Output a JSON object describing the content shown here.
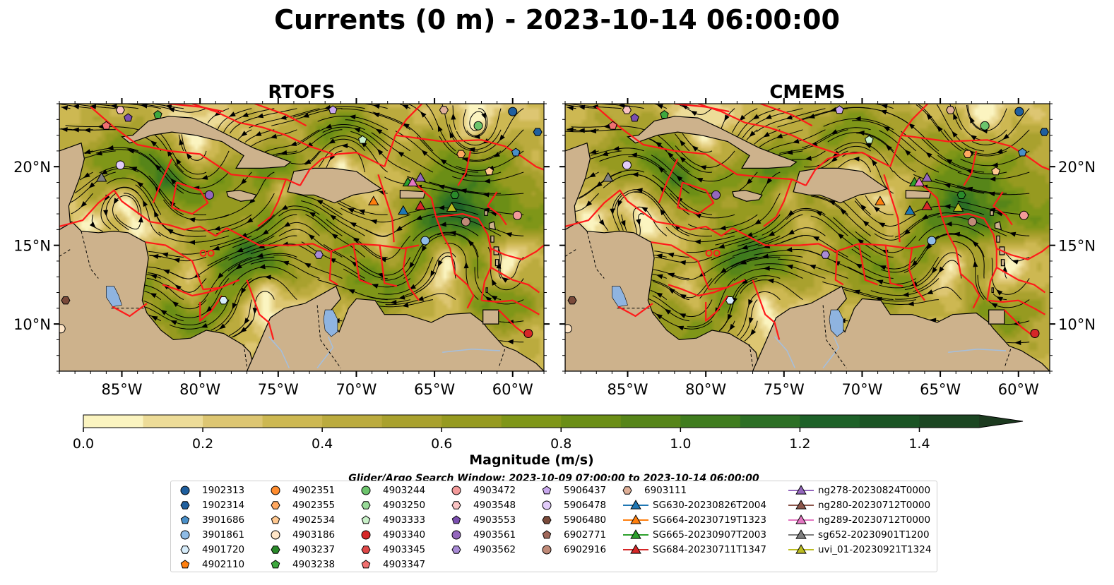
{
  "title": "Currents (0 m) - 2023-10-14 06:00:00",
  "panels": [
    {
      "id": "rtofs",
      "title": "RTOFS"
    },
    {
      "id": "cmems",
      "title": "CMEMS"
    }
  ],
  "map_extent": {
    "lon_min": -89,
    "lon_max": -58,
    "lat_min": 7,
    "lat_max": 24
  },
  "lon_ticks": [
    {
      "v": -85,
      "label": "85°W"
    },
    {
      "v": -80,
      "label": "80°W"
    },
    {
      "v": -75,
      "label": "75°W"
    },
    {
      "v": -70,
      "label": "70°W"
    },
    {
      "v": -65,
      "label": "65°W"
    },
    {
      "v": -60,
      "label": "60°W"
    }
  ],
  "lat_ticks": [
    {
      "v": 20,
      "label": "20°N"
    },
    {
      "v": 15,
      "label": "15°N"
    },
    {
      "v": 10,
      "label": "10°N"
    }
  ],
  "colorbar": {
    "label": "Magnitude (m/s)",
    "min": 0.0,
    "max": 1.5,
    "extend": "max",
    "ticks": [
      {
        "v": 0.0,
        "label": "0.0"
      },
      {
        "v": 0.2,
        "label": "0.2"
      },
      {
        "v": 0.4,
        "label": "0.4"
      },
      {
        "v": 0.6,
        "label": "0.6"
      },
      {
        "v": 0.8,
        "label": "0.8"
      },
      {
        "v": 1.0,
        "label": "1.0"
      },
      {
        "v": 1.2,
        "label": "1.2"
      },
      {
        "v": 1.4,
        "label": "1.4"
      }
    ],
    "colors": [
      "#fbf4c0",
      "#eddc98",
      "#ddc672",
      "#cdb852",
      "#bbab3e",
      "#a9a12e",
      "#969a20",
      "#7f9618",
      "#6b8e16",
      "#568519",
      "#3f7c1e",
      "#2c6f25",
      "#1d6128",
      "#1a5424",
      "#1b4622",
      "#1c3a1f"
    ]
  },
  "search_window": "Glider/Argo Search Window: 2023-10-09 07:00:00 to 2023-10-14 06:00:00",
  "legend_items": [
    {
      "label": "1902313",
      "marker": "circle",
      "color": "#1f5f9e"
    },
    {
      "label": "1902314",
      "marker": "hexagon",
      "color": "#1f5f9e"
    },
    {
      "label": "3901686",
      "marker": "pentagon",
      "color": "#4a90c9"
    },
    {
      "label": "3901861",
      "marker": "circle",
      "color": "#8fbce6"
    },
    {
      "label": "4901720",
      "marker": "hexagon",
      "color": "#d6ecfa"
    },
    {
      "label": "4902110",
      "marker": "pentagon",
      "color": "#ff7f0e"
    },
    {
      "label": "4902351",
      "marker": "circle",
      "color": "#ff8c2e"
    },
    {
      "label": "4902355",
      "marker": "hexagon",
      "color": "#ffa860"
    },
    {
      "label": "4902534",
      "marker": "pentagon",
      "color": "#ffc890"
    },
    {
      "label": "4903186",
      "marker": "circle",
      "color": "#ffe6c8"
    },
    {
      "label": "4903237",
      "marker": "hexagon",
      "color": "#2a8a2a"
    },
    {
      "label": "4903238",
      "marker": "pentagon",
      "color": "#3ea83e"
    },
    {
      "label": "4903244",
      "marker": "circle",
      "color": "#6cc46c"
    },
    {
      "label": "4903250",
      "marker": "hexagon",
      "color": "#98da98"
    },
    {
      "label": "4903333",
      "marker": "pentagon",
      "color": "#c8f0c8"
    },
    {
      "label": "4903340",
      "marker": "circle",
      "color": "#d62728"
    },
    {
      "label": "4903345",
      "marker": "hexagon",
      "color": "#e04848"
    },
    {
      "label": "4903347",
      "marker": "pentagon",
      "color": "#f07070"
    },
    {
      "label": "4903472",
      "marker": "circle",
      "color": "#f39a9a"
    },
    {
      "label": "4903548",
      "marker": "hexagon",
      "color": "#fbc4c4"
    },
    {
      "label": "4903553",
      "marker": "pentagon",
      "color": "#7b4fb0"
    },
    {
      "label": "4903561",
      "marker": "circle",
      "color": "#9467bd"
    },
    {
      "label": "4903562",
      "marker": "hexagon",
      "color": "#a98bd6"
    },
    {
      "label": "5906437",
      "marker": "pentagon",
      "color": "#c9a8ee"
    },
    {
      "label": "5906478",
      "marker": "circle",
      "color": "#e2ccfa"
    },
    {
      "label": "5906480",
      "marker": "hexagon",
      "color": "#7a4a3a"
    },
    {
      "label": "6902771",
      "marker": "pentagon",
      "color": "#a0685a"
    },
    {
      "label": "6902916",
      "marker": "circle",
      "color": "#c08a78"
    },
    {
      "label": "6903111",
      "marker": "hexagon",
      "color": "#e0b098"
    },
    {
      "label": "SG630-20230826T2004",
      "marker": "triangle",
      "color": "#1f77b4",
      "line": true
    },
    {
      "label": "SG664-20230719T1323",
      "marker": "triangle",
      "color": "#ff7f0e",
      "line": true
    },
    {
      "label": "SG665-20230907T2003",
      "marker": "triangle",
      "color": "#2ca02c",
      "line": true
    },
    {
      "label": "SG684-20230711T1347",
      "marker": "triangle",
      "color": "#d62728",
      "line": true
    },
    {
      "label": "ng278-20230824T0000",
      "marker": "triangle",
      "color": "#9467bd",
      "line": true
    },
    {
      "label": "ng280-20230712T0000",
      "marker": "triangle",
      "color": "#8c564b",
      "line": true
    },
    {
      "label": "ng289-20230712T0000",
      "marker": "triangle",
      "color": "#e377c2",
      "line": true
    },
    {
      "label": "sg652-20230901T1200",
      "marker": "triangle",
      "color": "#7f7f7f",
      "line": true
    },
    {
      "label": "uvi_01-20230921T1324",
      "marker": "triangle",
      "color": "#bcbd22",
      "line": true
    }
  ],
  "platform_positions": [
    {
      "label": "1902313",
      "lon": -60.0,
      "lat": 23.5
    },
    {
      "label": "1902314",
      "lon": -58.4,
      "lat": 22.2
    },
    {
      "label": "3901686",
      "lon": -59.8,
      "lat": 20.9
    },
    {
      "label": "3901861",
      "lon": -65.6,
      "lat": 15.3
    },
    {
      "label": "4901720",
      "lon": -78.5,
      "lat": 11.5
    },
    {
      "label": "4902355",
      "lon": -63.3,
      "lat": 20.8
    },
    {
      "label": "4902534",
      "lon": -61.5,
      "lat": 19.7
    },
    {
      "label": "4903186",
      "lon": -88.9,
      "lat": 9.7
    },
    {
      "label": "4903237",
      "lon": -63.7,
      "lat": 18.2
    },
    {
      "label": "4903238",
      "lon": -82.7,
      "lat": 23.3
    },
    {
      "label": "4903244",
      "lon": -62.2,
      "lat": 22.6
    },
    {
      "label": "4903333",
      "lon": -69.6,
      "lat": 21.7
    },
    {
      "label": "4903340",
      "lon": -59.0,
      "lat": 9.4
    },
    {
      "label": "4903347",
      "lon": -86.0,
      "lat": 22.6
    },
    {
      "label": "4903472",
      "lon": -59.7,
      "lat": 16.9
    },
    {
      "label": "4903548",
      "lon": -85.1,
      "lat": 23.6
    },
    {
      "label": "4903553",
      "lon": -84.6,
      "lat": 23.1
    },
    {
      "label": "4903561",
      "lon": -79.4,
      "lat": 18.2
    },
    {
      "label": "4903562",
      "lon": -72.4,
      "lat": 14.4
    },
    {
      "label": "5906437",
      "lon": -71.5,
      "lat": 23.6
    },
    {
      "label": "5906478",
      "lon": -85.1,
      "lat": 20.1
    },
    {
      "label": "5906480",
      "lon": -88.6,
      "lat": 11.5
    },
    {
      "label": "6902916",
      "lon": -63.0,
      "lat": 16.5
    },
    {
      "label": "6903111",
      "lon": -64.4,
      "lat": 23.6
    },
    {
      "label": "SG630-20230826T2004",
      "lon": -67.0,
      "lat": 17.2
    },
    {
      "label": "SG664-20230719T1323",
      "lon": -68.9,
      "lat": 17.8
    },
    {
      "label": "SG665-20230907T2003",
      "lon": -66.7,
      "lat": 19.0
    },
    {
      "label": "SG684-20230711T1347",
      "lon": -65.9,
      "lat": 17.5
    },
    {
      "label": "ng278-20230824T0000",
      "lon": -65.9,
      "lat": 19.3
    },
    {
      "label": "ng289-20230712T0000",
      "lon": -66.4,
      "lat": 19.0
    },
    {
      "label": "sg652-20230901T1200",
      "lon": -86.3,
      "lat": 19.3
    },
    {
      "label": "uvi_01-20230921T1324",
      "lon": -63.9,
      "lat": 17.4
    }
  ],
  "colors": {
    "land": "#cdb28c",
    "lakes": "#8fb4e0",
    "rivers": "#a3bfe0",
    "eez_lines": "#ff1a1a",
    "streamlines": "#000000"
  }
}
